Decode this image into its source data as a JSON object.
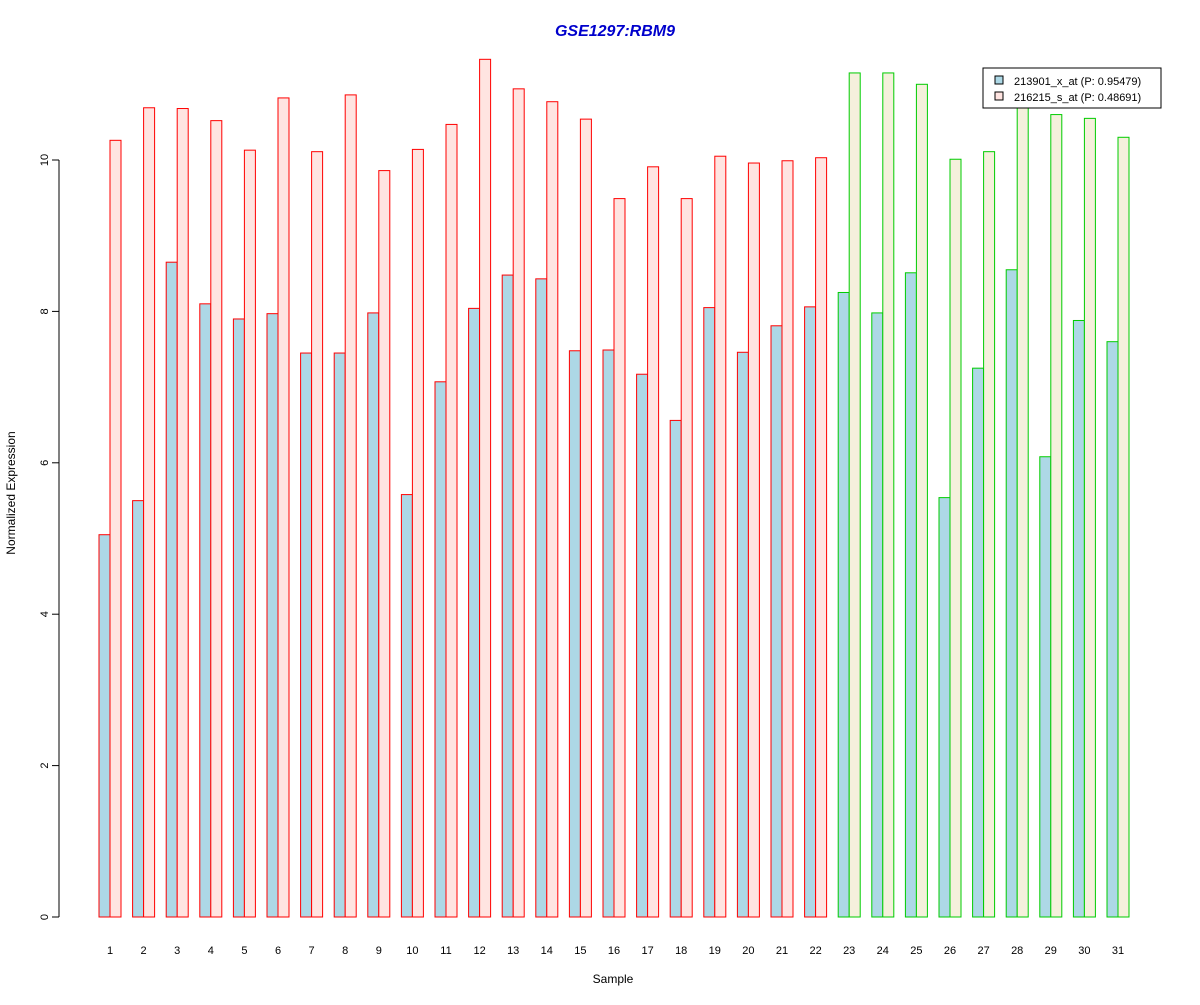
{
  "chart_data": {
    "type": "bar",
    "title": "GSE1297:RBM9",
    "xlabel": "Sample",
    "ylabel": "Normalized Expression",
    "ylim": [
      0,
      11.3
    ],
    "yticks": [
      "0",
      "2",
      "4",
      "6",
      "8",
      "10"
    ],
    "categories": [
      "1",
      "2",
      "3",
      "4",
      "5",
      "6",
      "7",
      "8",
      "9",
      "10",
      "11",
      "12",
      "13",
      "14",
      "15",
      "16",
      "17",
      "18",
      "19",
      "20",
      "21",
      "22",
      "23",
      "24",
      "25",
      "26",
      "27",
      "28",
      "29",
      "30",
      "31"
    ],
    "group_of_sample": [
      "red",
      "red",
      "red",
      "red",
      "red",
      "red",
      "red",
      "red",
      "red",
      "red",
      "red",
      "red",
      "red",
      "red",
      "red",
      "red",
      "red",
      "red",
      "red",
      "red",
      "red",
      "red",
      "green",
      "green",
      "green",
      "green",
      "green",
      "green",
      "green",
      "green",
      "green"
    ],
    "series": [
      {
        "name": "213901_x_at (P: 0.95479)",
        "values": [
          5.05,
          5.5,
          8.65,
          8.1,
          7.9,
          7.97,
          7.45,
          7.45,
          7.98,
          5.58,
          7.07,
          8.04,
          8.48,
          8.43,
          7.48,
          7.49,
          7.17,
          6.56,
          8.05,
          7.46,
          7.81,
          8.06,
          8.25,
          7.98,
          8.51,
          5.54,
          7.25,
          8.55,
          6.08,
          7.88,
          7.6
        ]
      },
      {
        "name": "216215_s_at (P: 0.48691)",
        "values": [
          10.26,
          10.69,
          10.68,
          10.52,
          10.13,
          10.82,
          10.11,
          10.86,
          9.86,
          10.14,
          10.47,
          11.33,
          10.94,
          10.77,
          10.54,
          9.49,
          9.91,
          9.49,
          10.05,
          9.96,
          9.99,
          10.03,
          11.15,
          11.15,
          11.0,
          10.01,
          10.11,
          10.7,
          10.6,
          10.55,
          10.3
        ]
      }
    ],
    "colors": {
      "title": "#0000cc",
      "series1_fill": "#add8e6",
      "series2_fill_red": "#ffe4e1",
      "series2_fill_green": "#f5f0dc",
      "border_red": "#ff0000",
      "border_green": "#00cc00",
      "legend_border": "#000000"
    },
    "legend_position": "top-right"
  }
}
